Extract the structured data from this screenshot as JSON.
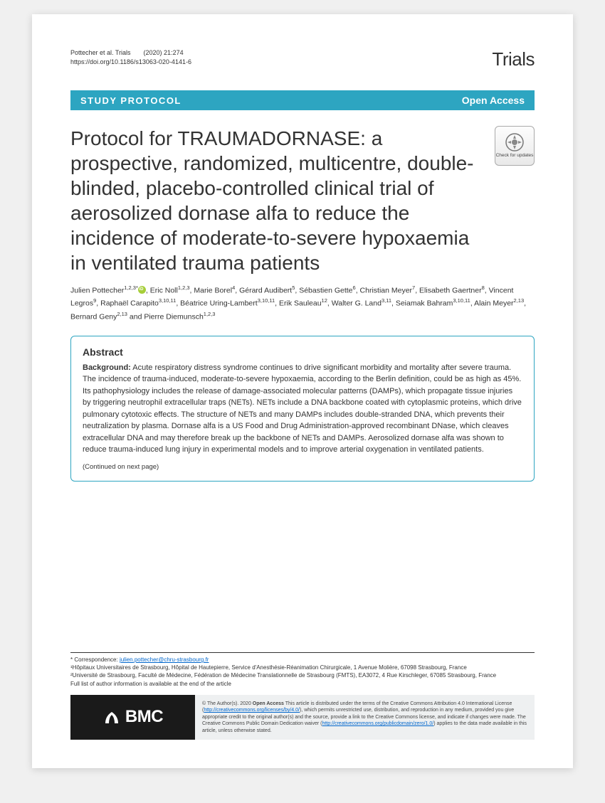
{
  "header": {
    "citation_line1": "Pottecher et al. Trials  (2020) 21:274",
    "citation_line2": "https://doi.org/10.1186/s13063-020-4141-6",
    "journal_logo": "Trials"
  },
  "banner": {
    "label": "STUDY PROTOCOL",
    "access": "Open Access"
  },
  "title": "Protocol for TRAUMADORNASE: a prospective, randomized, multicentre, double-blinded, placebo-controlled clinical trial of aerosolized dornase alfa to reduce the incidence of moderate-to-severe hypoxaemia in ventilated trauma patients",
  "crossmark": {
    "label": "Check for updates"
  },
  "authors_html": "Julien Pottecher<sup>1,2,3*</sup><span class=\"orcid\"></span>, Eric Noll<sup>1,2,3</sup>, Marie Borel<sup>4</sup>, Gérard Audibert<sup>5</sup>, Sébastien Gette<sup>6</sup>, Christian Meyer<sup>7</sup>, Elisabeth Gaertner<sup>8</sup>, Vincent Legros<sup>9</sup>, Raphaël Carapito<sup>3,10,11</sup>, Béatrice Uring-Lambert<sup>3,10,11</sup>, Erik Sauleau<sup>12</sup>, Walter G. Land<sup>3,11</sup>, Seiamak Bahram<sup>3,10,11</sup>, Alain Meyer<sup>2,13</sup>, Bernard Geny<sup>2,13</sup> and Pierre Diemunsch<sup>1,2,3</sup>",
  "abstract": {
    "heading": "Abstract",
    "background_label": "Background:",
    "background_text": " Acute respiratory distress syndrome continues to drive significant morbidity and mortality after severe trauma. The incidence of trauma-induced, moderate-to-severe hypoxaemia, according to the Berlin definition, could be as high as 45%. Its pathophysiology includes the release of damage-associated molecular patterns (DAMPs), which propagate tissue injuries by triggering neutrophil extracellular traps (NETs). NETs include a DNA backbone coated with cytoplasmic proteins, which drive pulmonary cytotoxic effects. The structure of NETs and many DAMPs includes double-stranded DNA, which prevents their neutralization by plasma. Dornase alfa is a US Food and Drug Administration-approved recombinant DNase, which cleaves extracellular DNA and may therefore break up the backbone of NETs and DAMPs. Aerosolized dornase alfa was shown to reduce trauma-induced lung injury in experimental models and to improve arterial oxygenation in ventilated patients.",
    "continued": "(Continued on next page)"
  },
  "correspondence": {
    "star": "* Correspondence: ",
    "email": "julien.pottecher@chru-strasbourg.fr",
    "affil1": "¹Hôpitaux Universitaires de Strasbourg, Hôpital de Hautepierre, Service d'Anesthésie-Réanimation Chirurgicale, 1 Avenue Molière, 67098 Strasbourg, France",
    "affil2": "²Université de Strasbourg, Faculté de Médecine, Fédération de Médecine Translationnelle de Strasbourg (FMTS), EA3072, 4 Rue Kirschleger, 67085 Strasbourg, France",
    "note": "Full list of author information is available at the end of the article"
  },
  "bmc": {
    "logo_text": "BMC"
  },
  "license": {
    "text": "© The Author(s). 2020 <b>Open Access</b> This article is distributed under the terms of the Creative Commons Attribution 4.0 International License (<a href='#'>http://creativecommons.org/licenses/by/4.0/</a>), which permits unrestricted use, distribution, and reproduction in any medium, provided you give appropriate credit to the original author(s) and the source, provide a link to the Creative Commons license, and indicate if changes were made. The Creative Commons Public Domain Dedication waiver (<a href='#'>http://creativecommons.org/publicdomain/zero/1.0/</a>) applies to the data made available in this article, unless otherwise stated."
  },
  "colors": {
    "banner_bg": "#2da5c1",
    "text": "#333333",
    "link": "#0066cc",
    "bmc_bg": "#1a1a1a",
    "license_bg": "#eef0f1",
    "orcid": "#a6ce39"
  }
}
